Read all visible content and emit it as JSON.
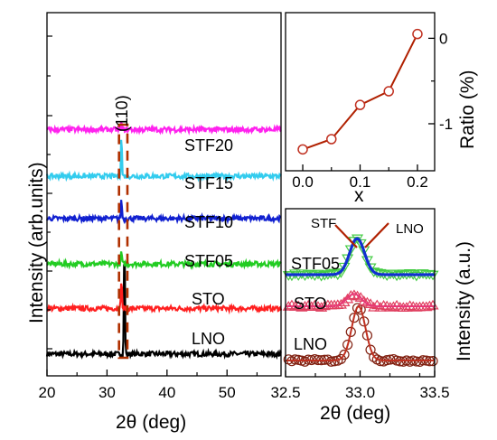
{
  "chart_data": [
    {
      "panel": "main",
      "type": "line",
      "xlabel": "2θ (deg)",
      "ylabel": "Intensity (arb.units)",
      "xlim": [
        20,
        59
      ],
      "xticks": [
        "20",
        "30",
        "40",
        "50"
      ],
      "xtick_values": [
        20,
        30,
        40,
        50
      ],
      "annotation": "(110)",
      "peak_box_x": [
        32,
        33.4
      ],
      "series": [
        {
          "name": "LNO",
          "color": "#000000",
          "baseline": 0.6,
          "peak_x": 32.9,
          "peak_height": 10.7
        },
        {
          "name": "STO",
          "color": "#ff2020",
          "baseline": 4.8,
          "peak_x": 32.4,
          "peak_height": 2.8
        },
        {
          "name": "STF05",
          "color": "#22cc22",
          "baseline": 8.9,
          "peak_x": 32.4,
          "peak_height": 1.2
        },
        {
          "name": "STF10",
          "color": "#1020d0",
          "baseline": 13.1,
          "peak_x": 32.4,
          "peak_height": 1.8
        },
        {
          "name": "STF15",
          "color": "#33ccee",
          "baseline": 17.0,
          "peak_x": 32.4,
          "peak_height": 3.8
        },
        {
          "name": "STF20",
          "color": "#ff22ee",
          "baseline": 21.3,
          "peak_x": 32.4,
          "peak_height": 0.6
        }
      ]
    },
    {
      "panel": "inset-ratio",
      "type": "line",
      "xlabel": "x",
      "ylabel": "Ratio (%)",
      "xlim": [
        -0.03,
        0.23
      ],
      "ylim": [
        -1.55,
        0.3
      ],
      "xticks": [
        "0.0",
        "0.1",
        "0.2"
      ],
      "xtick_values": [
        0.0,
        0.1,
        0.2
      ],
      "yticks": [
        "-1",
        "0"
      ],
      "ytick_values": [
        -1,
        0
      ],
      "x": [
        0.0,
        0.05,
        0.1,
        0.15,
        0.2
      ],
      "y": [
        -1.3,
        -1.18,
        -0.78,
        -0.62,
        0.05
      ],
      "color": "#b02000"
    },
    {
      "panel": "inset-peaks",
      "type": "line",
      "xlabel": "2θ (deg)",
      "ylabel": "Intensity (a.u.)",
      "xlim": [
        32.5,
        33.5
      ],
      "xticks": [
        "32.5",
        "33.0",
        "33.5"
      ],
      "xminor": [
        "32.7",
        "32.9",
        "33.2",
        "33.4"
      ],
      "xtick_values": [
        32.5,
        33.0,
        33.5
      ],
      "series": [
        {
          "name": "LNO",
          "center": 32.99,
          "width": 0.065,
          "baseline": 0.2,
          "height": 2.4,
          "marker": "circle",
          "fit_color": "#c03020"
        },
        {
          "name": "STO",
          "center": 32.96,
          "width": 0.07,
          "baseline": 2.6,
          "height": 0.55,
          "marker": "triangle-up",
          "fit_color": "#e83878"
        },
        {
          "name": "STF05",
          "center": 32.98,
          "width": 0.07,
          "baseline": 4.0,
          "height": 1.6,
          "marker": "triangle-down",
          "fit_color": "#1030d0"
        }
      ],
      "labels": {
        "stf": "STF",
        "lno": "LNO"
      }
    }
  ]
}
